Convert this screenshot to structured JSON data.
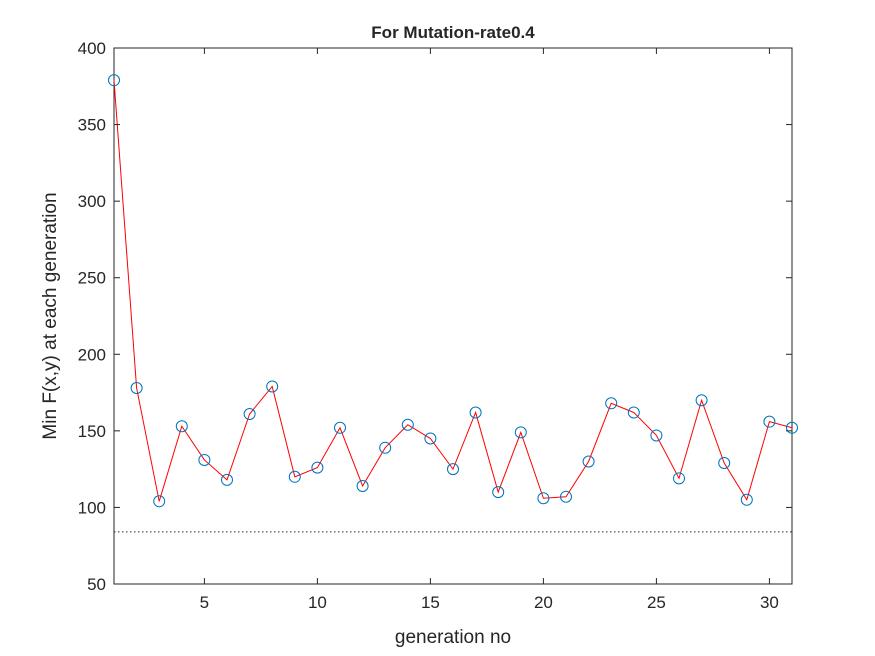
{
  "chart_data": {
    "type": "line",
    "title": "For Mutation-rate0.4",
    "xlabel": "generation no",
    "ylabel": "Min F(x,y) at each generation",
    "xlim": [
      1,
      31
    ],
    "ylim": [
      50,
      400
    ],
    "x_ticks": [
      5,
      10,
      15,
      20,
      25,
      30
    ],
    "y_ticks": [
      50,
      100,
      150,
      200,
      250,
      300,
      350,
      400
    ],
    "grid": false,
    "legend": "none",
    "series": [
      {
        "line_color": "#ff0000",
        "marker": "circle",
        "marker_color": "#0072bd",
        "x": [
          1,
          2,
          3,
          4,
          5,
          6,
          7,
          8,
          9,
          10,
          11,
          12,
          13,
          14,
          15,
          16,
          17,
          18,
          19,
          20,
          21,
          22,
          23,
          24,
          25,
          26,
          27,
          28,
          29,
          30,
          31
        ],
        "y": [
          379,
          178,
          104,
          153,
          131,
          118,
          161,
          179,
          120,
          126,
          152,
          114,
          139,
          154,
          145,
          125,
          162,
          110,
          149,
          106,
          107,
          130,
          168,
          162,
          147,
          119,
          170,
          129,
          105,
          156,
          152
        ]
      }
    ],
    "reference_lines": [
      {
        "orientation": "horizontal",
        "y": 84,
        "style": "dotted",
        "color": "#262626"
      }
    ]
  }
}
